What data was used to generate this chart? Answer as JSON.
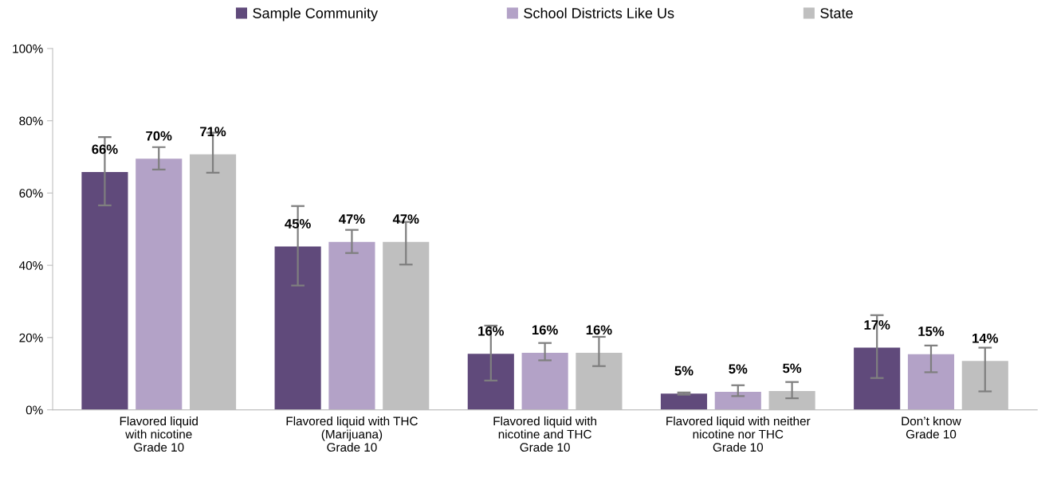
{
  "chart_data": {
    "type": "bar",
    "categories": [
      "Flavored liquid\nwith nicotine\nGrade 10",
      "Flavored liquid with THC\n(Marijuana)\nGrade 10",
      "Flavored liquid with\nnicotine and THC\nGrade 10",
      "Flavored liquid with neither\nnicotine nor THC\nGrade 10",
      "Don’t know\nGrade 10"
    ],
    "series": [
      {
        "name": "Sample Community",
        "color": "#604a7b",
        "values": [
          65.8,
          45.2,
          15.5,
          4.5,
          17.2
        ],
        "value_labels": [
          "66%",
          "45%",
          "16%",
          "5%",
          "17%"
        ],
        "errors": [
          [
            56.6,
            75.5
          ],
          [
            34.4,
            56.4
          ],
          [
            8.1,
            23.3
          ],
          [
            4.2,
            4.8
          ],
          [
            8.8,
            26.2
          ]
        ]
      },
      {
        "name": "School Districts Like Us",
        "color": "#b3a2c7",
        "values": [
          69.5,
          46.5,
          15.8,
          5.0,
          15.4
        ],
        "value_labels": [
          "70%",
          "47%",
          "16%",
          "5%",
          "15%"
        ],
        "errors": [
          [
            66.5,
            72.7
          ],
          [
            43.4,
            49.8
          ],
          [
            13.7,
            18.5
          ],
          [
            3.8,
            6.8
          ],
          [
            10.4,
            17.8
          ]
        ]
      },
      {
        "name": "State",
        "color": "#bfbfbf",
        "values": [
          70.7,
          46.5,
          15.8,
          5.2,
          13.5
        ],
        "value_labels": [
          "71%",
          "47%",
          "16%",
          "5%",
          "14%"
        ],
        "errors": [
          [
            65.6,
            76.7
          ],
          [
            40.2,
            52.0
          ],
          [
            12.1,
            20.2
          ],
          [
            3.2,
            7.7
          ],
          [
            5.1,
            17.2
          ]
        ]
      }
    ],
    "ylim": [
      0,
      100
    ],
    "yticks": [
      {
        "value": 0,
        "label": "0%"
      },
      {
        "value": 20,
        "label": "20%"
      },
      {
        "value": 40,
        "label": "40%"
      },
      {
        "value": 60,
        "label": "60%"
      },
      {
        "value": 80,
        "label": "80%"
      },
      {
        "value": 100,
        "label": "100%"
      }
    ],
    "grid": false,
    "legend": "top"
  }
}
